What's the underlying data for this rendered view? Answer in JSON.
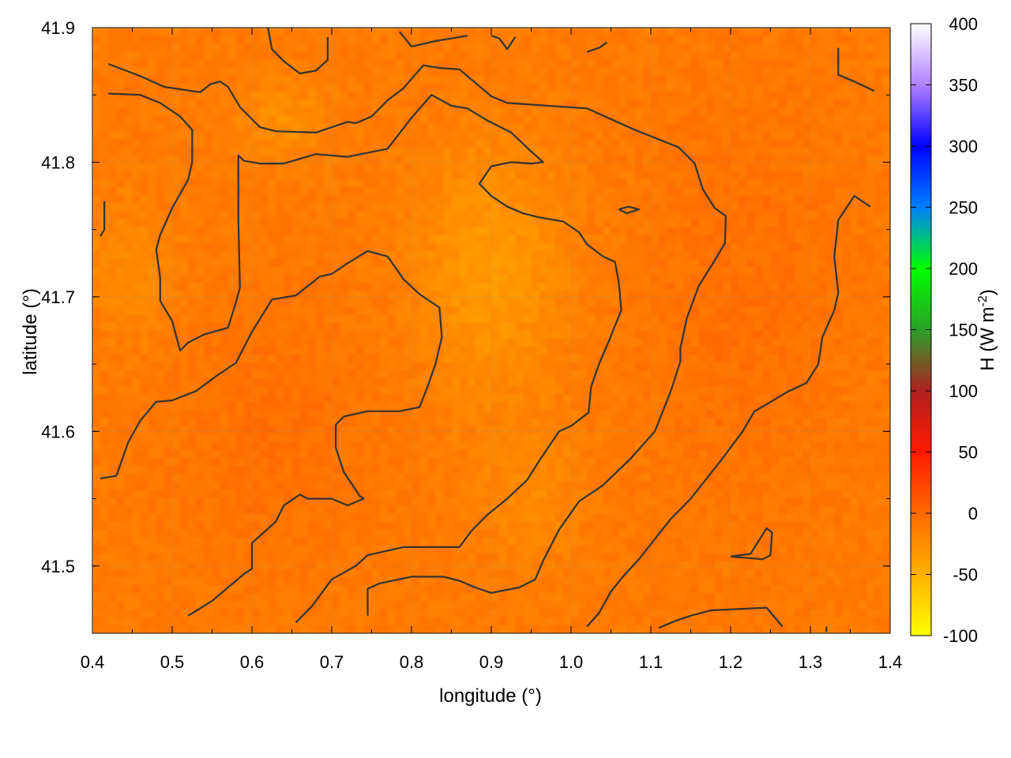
{
  "chart_data": {
    "type": "heatmap",
    "title": "",
    "xlabel": "longitude (°)",
    "ylabel": "latitude (°)",
    "colorbar_label": "H (W m",
    "colorbar_label_exponent": "-2",
    "colorbar_label_close": ")",
    "xlim": [
      0.4,
      1.4
    ],
    "ylim": [
      41.45,
      41.9
    ],
    "x_ticks": [
      0.4,
      0.5,
      0.6,
      0.7,
      0.8,
      0.9,
      1.0,
      1.1,
      1.2,
      1.3,
      1.4
    ],
    "x_tick_labels": [
      "0.4",
      "0.5",
      "0.6",
      "0.7",
      "0.8",
      "0.9",
      "1.0",
      "1.1",
      "1.2",
      "1.3",
      "1.4"
    ],
    "y_ticks": [
      41.5,
      41.6,
      41.7,
      41.8,
      41.9
    ],
    "y_tick_labels": [
      "41.5",
      "41.6",
      "41.7",
      "41.8",
      "41.9"
    ],
    "color_range": [
      -100,
      400
    ],
    "colorbar_ticks": [
      -100,
      -50,
      0,
      50,
      100,
      150,
      200,
      250,
      300,
      350,
      400
    ],
    "colorbar_tick_labels": [
      "-100",
      "-50",
      "0",
      "50",
      "100",
      "150",
      "200",
      "250",
      "300",
      "350",
      "400"
    ],
    "palette": [
      {
        "value": -100,
        "color": "#ffff00"
      },
      {
        "value": -50,
        "color": "#ffb000"
      },
      {
        "value": 0,
        "color": "#ff6a00"
      },
      {
        "value": 50,
        "color": "#ff1a00"
      },
      {
        "value": 100,
        "color": "#b02020"
      },
      {
        "value": 150,
        "color": "#2aa02a"
      },
      {
        "value": 200,
        "color": "#00ff00"
      },
      {
        "value": 250,
        "color": "#007fff"
      },
      {
        "value": 300,
        "color": "#0000ff"
      },
      {
        "value": 350,
        "color": "#b080ff"
      },
      {
        "value": 400,
        "color": "#ffffff"
      }
    ],
    "field_description_value_range": [
      -45,
      5
    ],
    "grid": true,
    "colorbar_placement": "right",
    "contour_color": "#333333",
    "contours": [
      [
        [
          0.42,
          41.873
        ],
        [
          0.46,
          41.864
        ],
        [
          0.49,
          41.856
        ],
        [
          0.535,
          41.852
        ],
        [
          0.548,
          41.858
        ],
        [
          0.56,
          41.86
        ],
        [
          0.57,
          41.856
        ],
        [
          0.585,
          41.841
        ],
        [
          0.61,
          41.826
        ],
        [
          0.63,
          41.823
        ],
        [
          0.68,
          41.822
        ],
        [
          0.72,
          41.83
        ],
        [
          0.73,
          41.829
        ],
        [
          0.75,
          41.834
        ],
        [
          0.77,
          41.846
        ],
        [
          0.79,
          41.855
        ],
        [
          0.8,
          41.862
        ],
        [
          0.815,
          41.872
        ],
        [
          0.835,
          41.87
        ],
        [
          0.86,
          41.869
        ],
        [
          0.9,
          41.849
        ],
        [
          0.92,
          41.844
        ],
        [
          1.02,
          41.84
        ],
        [
          1.08,
          41.824
        ],
        [
          1.11,
          41.817
        ],
        [
          1.135,
          41.811
        ],
        [
          1.155,
          41.799
        ],
        [
          1.165,
          41.78
        ],
        [
          1.18,
          41.766
        ],
        [
          1.194,
          41.76
        ],
        [
          1.193,
          41.74
        ],
        [
          1.18,
          41.727
        ],
        [
          1.16,
          41.708
        ],
        [
          1.145,
          41.684
        ],
        [
          1.137,
          41.662
        ],
        [
          1.137,
          41.652
        ],
        [
          1.125,
          41.63
        ],
        [
          1.105,
          41.6
        ],
        [
          1.075,
          41.58
        ],
        [
          1.04,
          41.56
        ],
        [
          1.01,
          41.548
        ],
        [
          0.985,
          41.527
        ],
        [
          0.965,
          41.504
        ],
        [
          0.955,
          41.49
        ],
        [
          0.935,
          41.484
        ],
        [
          0.9,
          41.48
        ],
        [
          0.88,
          41.484
        ],
        [
          0.86,
          41.489
        ],
        [
          0.84,
          41.492
        ],
        [
          0.8,
          41.492
        ],
        [
          0.76,
          41.487
        ],
        [
          0.745,
          41.483
        ],
        [
          0.745,
          41.463
        ]
      ],
      [
        [
          0.42,
          41.851
        ],
        [
          0.46,
          41.85
        ],
        [
          0.485,
          41.844
        ],
        [
          0.51,
          41.834
        ],
        [
          0.525,
          41.824
        ],
        [
          0.525,
          41.8
        ],
        [
          0.52,
          41.787
        ],
        [
          0.5,
          41.766
        ],
        [
          0.485,
          41.746
        ],
        [
          0.48,
          41.735
        ],
        [
          0.485,
          41.714
        ],
        [
          0.485,
          41.697
        ],
        [
          0.5,
          41.682
        ],
        [
          0.51,
          41.66
        ],
        [
          0.52,
          41.666
        ],
        [
          0.54,
          41.672
        ],
        [
          0.57,
          41.677
        ],
        [
          0.58,
          41.696
        ],
        [
          0.585,
          41.707
        ],
        [
          0.583,
          41.757
        ],
        [
          0.583,
          41.805
        ],
        [
          0.59,
          41.801
        ],
        [
          0.61,
          41.799
        ],
        [
          0.64,
          41.799
        ],
        [
          0.68,
          41.806
        ],
        [
          0.72,
          41.804
        ],
        [
          0.77,
          41.81
        ],
        [
          0.8,
          41.833
        ],
        [
          0.825,
          41.85
        ],
        [
          0.85,
          41.842
        ],
        [
          0.87,
          41.84
        ],
        [
          0.895,
          41.831
        ],
        [
          0.925,
          41.822
        ],
        [
          0.95,
          41.808
        ],
        [
          0.965,
          41.8
        ],
        [
          0.95,
          41.799
        ],
        [
          0.925,
          41.8
        ],
        [
          0.9,
          41.797
        ],
        [
          0.885,
          41.784
        ],
        [
          0.9,
          41.775
        ],
        [
          0.92,
          41.767
        ],
        [
          0.94,
          41.762
        ],
        [
          0.96,
          41.759
        ],
        [
          0.99,
          41.756
        ],
        [
          1.01,
          41.748
        ],
        [
          1.02,
          41.739
        ],
        [
          1.04,
          41.73
        ],
        [
          1.055,
          41.726
        ],
        [
          1.06,
          41.71
        ],
        [
          1.063,
          41.69
        ],
        [
          1.048,
          41.668
        ],
        [
          1.035,
          41.65
        ],
        [
          1.025,
          41.633
        ],
        [
          1.022,
          41.614
        ],
        [
          1.0,
          41.604
        ],
        [
          0.985,
          41.6
        ],
        [
          0.96,
          41.578
        ],
        [
          0.945,
          41.564
        ],
        [
          0.92,
          41.55
        ],
        [
          0.895,
          41.538
        ],
        [
          0.875,
          41.526
        ],
        [
          0.86,
          41.514
        ],
        [
          0.84,
          41.514
        ],
        [
          0.79,
          41.514
        ],
        [
          0.745,
          41.508
        ],
        [
          0.73,
          41.5
        ],
        [
          0.7,
          41.49
        ],
        [
          0.675,
          41.47
        ],
        [
          0.655,
          41.458
        ]
      ],
      [
        [
          0.41,
          41.565
        ],
        [
          0.43,
          41.567
        ],
        [
          0.445,
          41.592
        ],
        [
          0.46,
          41.608
        ],
        [
          0.48,
          41.622
        ],
        [
          0.5,
          41.623
        ],
        [
          0.53,
          41.63
        ],
        [
          0.555,
          41.641
        ],
        [
          0.58,
          41.651
        ],
        [
          0.6,
          41.674
        ],
        [
          0.625,
          41.698
        ],
        [
          0.655,
          41.701
        ],
        [
          0.685,
          41.715
        ],
        [
          0.7,
          41.717
        ],
        [
          0.72,
          41.725
        ],
        [
          0.745,
          41.734
        ],
        [
          0.77,
          41.73
        ],
        [
          0.79,
          41.713
        ],
        [
          0.81,
          41.702
        ],
        [
          0.835,
          41.692
        ],
        [
          0.838,
          41.67
        ],
        [
          0.83,
          41.65
        ],
        [
          0.82,
          41.633
        ],
        [
          0.81,
          41.618
        ],
        [
          0.785,
          41.615
        ],
        [
          0.745,
          41.615
        ],
        [
          0.715,
          41.611
        ],
        [
          0.705,
          41.605
        ],
        [
          0.705,
          41.588
        ],
        [
          0.715,
          41.57
        ],
        [
          0.735,
          41.552
        ],
        [
          0.74,
          41.55
        ],
        [
          0.72,
          41.545
        ],
        [
          0.7,
          41.55
        ],
        [
          0.67,
          41.55
        ],
        [
          0.66,
          41.553
        ],
        [
          0.64,
          41.545
        ],
        [
          0.63,
          41.533
        ],
        [
          0.615,
          41.525
        ],
        [
          0.6,
          41.517
        ],
        [
          0.6,
          41.498
        ],
        [
          0.59,
          41.494
        ],
        [
          0.57,
          41.484
        ],
        [
          0.55,
          41.474
        ],
        [
          0.52,
          41.463
        ]
      ],
      [
        [
          1.02,
          41.455
        ],
        [
          1.035,
          41.465
        ],
        [
          1.05,
          41.481
        ],
        [
          1.065,
          41.492
        ],
        [
          1.085,
          41.505
        ],
        [
          1.105,
          41.52
        ],
        [
          1.125,
          41.535
        ],
        [
          1.15,
          41.55
        ],
        [
          1.17,
          41.565
        ],
        [
          1.19,
          41.58
        ],
        [
          1.215,
          41.6
        ],
        [
          1.23,
          41.615
        ],
        [
          1.245,
          41.62
        ],
        [
          1.27,
          41.629
        ],
        [
          1.295,
          41.636
        ],
        [
          1.31,
          41.65
        ],
        [
          1.315,
          41.67
        ],
        [
          1.33,
          41.69
        ],
        [
          1.335,
          41.703
        ],
        [
          1.33,
          41.73
        ],
        [
          1.335,
          41.757
        ],
        [
          1.355,
          41.775
        ],
        [
          1.375,
          41.767
        ]
      ],
      [
        [
          1.11,
          41.454
        ],
        [
          1.13,
          41.459
        ],
        [
          1.15,
          41.463
        ],
        [
          1.175,
          41.467
        ],
        [
          1.245,
          41.469
        ],
        [
          1.265,
          41.455
        ]
      ],
      [
        [
          1.2,
          41.507
        ],
        [
          1.24,
          41.505
        ],
        [
          1.25,
          41.508
        ],
        [
          1.252,
          41.525
        ],
        [
          1.245,
          41.528
        ],
        [
          1.225,
          41.509
        ],
        [
          1.2,
          41.507
        ]
      ],
      [
        [
          1.06,
          41.765
        ],
        [
          1.072,
          41.767
        ],
        [
          1.085,
          41.765
        ],
        [
          1.07,
          41.762
        ],
        [
          1.06,
          41.765
        ]
      ],
      [
        [
          1.335,
          41.885
        ],
        [
          1.335,
          41.865
        ],
        [
          1.355,
          41.86
        ],
        [
          1.38,
          41.853
        ]
      ],
      [
        [
          0.62,
          41.9
        ],
        [
          0.625,
          41.884
        ],
        [
          0.64,
          41.875
        ],
        [
          0.66,
          41.866
        ],
        [
          0.68,
          41.868
        ],
        [
          0.695,
          41.876
        ],
        [
          0.695,
          41.893
        ]
      ],
      [
        [
          0.785,
          41.897
        ],
        [
          0.8,
          41.886
        ],
        [
          0.83,
          41.89
        ],
        [
          0.86,
          41.893
        ],
        [
          0.87,
          41.894
        ]
      ],
      [
        [
          0.9,
          41.894
        ],
        [
          0.91,
          41.892
        ],
        [
          0.92,
          41.884
        ],
        [
          0.93,
          41.893
        ]
      ],
      [
        [
          1.02,
          41.882
        ],
        [
          1.035,
          41.885
        ],
        [
          1.045,
          41.889
        ]
      ],
      [
        [
          0.41,
          41.745
        ],
        [
          0.415,
          41.75
        ],
        [
          0.415,
          41.771
        ]
      ],
      [
        [
          1.32,
          41.451
        ],
        [
          1.32,
          41.455
        ]
      ]
    ]
  }
}
